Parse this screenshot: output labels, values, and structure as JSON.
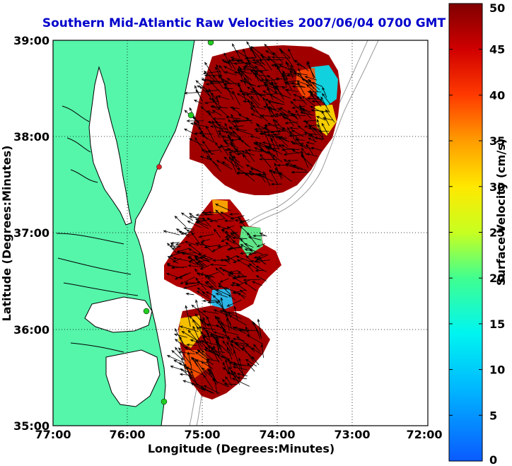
{
  "title": "Southern Mid-Atlantic Raw Velocities 2007/06/04 0700 GMT",
  "x_axis": {
    "label": "Longitude (Degrees:Minutes)",
    "ticks": [
      "77:00",
      "76:00",
      "75:00",
      "74:00",
      "73:00",
      "72:00"
    ],
    "range": [
      -77,
      -72
    ]
  },
  "y_axis": {
    "label": "Latitude (Degrees:Minutes)",
    "ticks": [
      "39:00",
      "38:00",
      "37:00",
      "36:00",
      "35:00"
    ],
    "range": [
      35,
      39
    ]
  },
  "colorbar": {
    "label": "Surface Velocity (cm/s)",
    "ticks": [
      "50",
      "45",
      "40",
      "35",
      "30",
      "25",
      "20",
      "15",
      "10",
      "5",
      "0"
    ],
    "range": [
      0,
      50
    ],
    "colormap": "jet"
  },
  "colors": {
    "land": "#55f5aa",
    "water": "#ffffff",
    "coastline": "#000000",
    "bathymetry": "#9a9a9a",
    "station": "#22cc22",
    "station_alt": "#dd2222"
  },
  "grid": "dotted"
}
